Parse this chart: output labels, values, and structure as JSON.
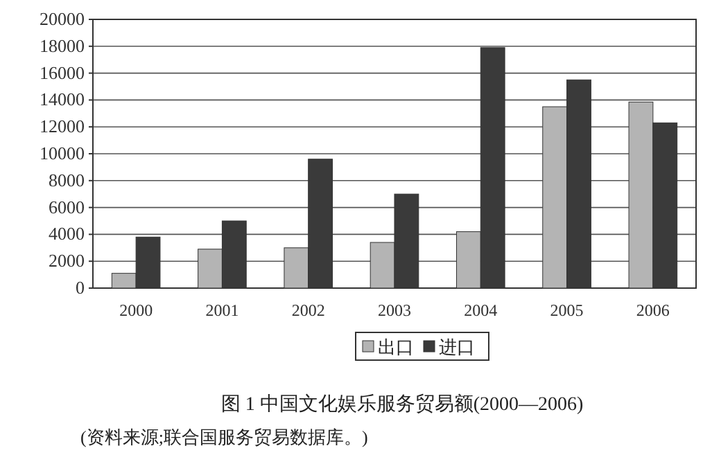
{
  "chart_data": {
    "type": "bar",
    "title": "图 1  中国文化娱乐服务贸易额(2000—2006)",
    "annotations": [
      "(资料来源;联合国服务贸易数据库。)"
    ],
    "categories": [
      "2000",
      "2001",
      "2002",
      "2003",
      "2004",
      "2005",
      "2006"
    ],
    "series": [
      {
        "name": "出口",
        "color": "#b4b4b4",
        "values": [
          1100,
          2900,
          3000,
          3400,
          4200,
          13500,
          13850
        ]
      },
      {
        "name": "进口",
        "color": "#3a3a3a",
        "values": [
          3800,
          5000,
          9600,
          7000,
          17900,
          15500,
          12300
        ]
      }
    ],
    "ylim": [
      0,
      20000
    ],
    "yticks": [
      0,
      2000,
      4000,
      6000,
      8000,
      10000,
      12000,
      14000,
      16000,
      18000,
      20000
    ],
    "grid": "y",
    "legend": "bottom"
  }
}
